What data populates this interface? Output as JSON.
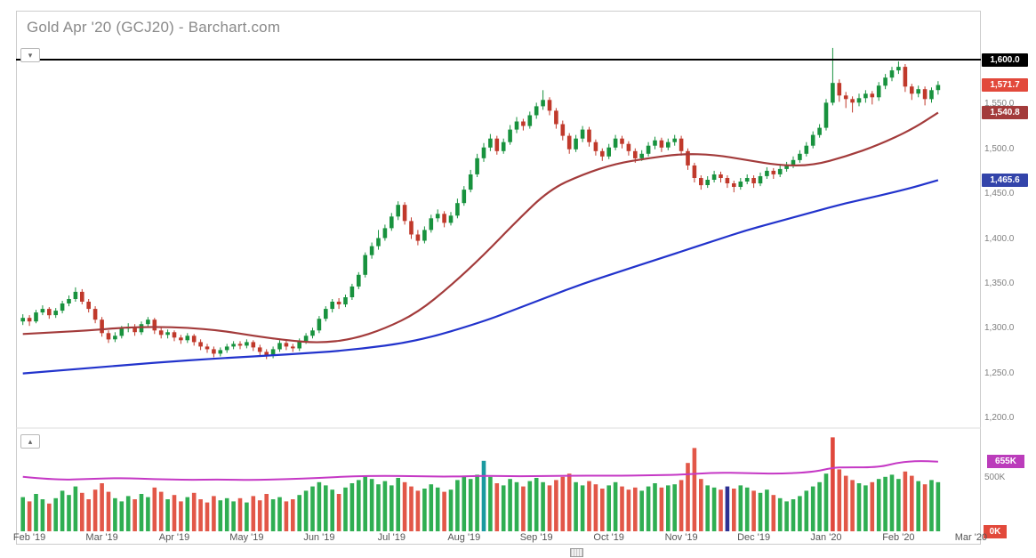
{
  "header": {
    "title": "Gold Apr '20 (GCJ20) - Barchart.com"
  },
  "icons": {
    "chevron_down": "▾",
    "chevron_up": "▴"
  },
  "chart_data": {
    "type": "candlestick+volume",
    "title": "Gold Apr '20 (GCJ20) - Barchart.com",
    "symbol": "GCJ20",
    "x_axis": {
      "labels": [
        "Feb '19",
        "Mar '19",
        "Apr '19",
        "May '19",
        "Jun '19",
        "Jul '19",
        "Aug '19",
        "Sep '19",
        "Oct '19",
        "Nov '19",
        "Dec '19",
        "Jan '20",
        "Feb '20",
        "Mar '20"
      ],
      "tick_indices": [
        1,
        12,
        23,
        34,
        45,
        56,
        67,
        78,
        89,
        100,
        111,
        122,
        133,
        144
      ],
      "total_slots": 146
    },
    "y_axis": {
      "range": [
        1200,
        1600
      ],
      "tick_labels": [
        "1,550.0",
        "1,500.0",
        "1,450.0",
        "1,400.0",
        "1,350.0",
        "1,300.0",
        "1,250.0",
        "1,200.0"
      ],
      "tick_values": [
        1550,
        1500,
        1450,
        1400,
        1350,
        1300,
        1250,
        1200
      ],
      "horizontal_line_value": 1600
    },
    "price_badges": [
      {
        "label": "1,600.0",
        "value": 1600.0,
        "color": "#000000",
        "role": "threshold-line"
      },
      {
        "label": "1,571.7",
        "value": 1571.7,
        "color": "#e2493b",
        "role": "last-price"
      },
      {
        "label": "1,540.8",
        "value": 1540.8,
        "color": "#a33b3b",
        "role": "ma-fast-value"
      },
      {
        "label": "1,465.6",
        "value": 1465.6,
        "color": "#3344aa",
        "role": "ma-slow-value"
      }
    ],
    "colors": {
      "candle_up": "#18923e",
      "candle_down": "#c0392b",
      "volume_up": "#2fae52",
      "volume_down": "#e25748",
      "avg_volume_line": "#c538c5",
      "ma_fast": "#a33b3b",
      "ma_slow": "#2233cc",
      "threshold_line": "#000000"
    },
    "candles": [
      [
        1308,
        1316,
        1304,
        1312
      ],
      [
        1312,
        1315,
        1303,
        1308
      ],
      [
        1308,
        1321,
        1306,
        1318
      ],
      [
        1318,
        1326,
        1315,
        1322
      ],
      [
        1322,
        1324,
        1311,
        1315
      ],
      [
        1315,
        1323,
        1312,
        1320
      ],
      [
        1320,
        1331,
        1317,
        1328
      ],
      [
        1328,
        1337,
        1325,
        1333
      ],
      [
        1333,
        1346,
        1330,
        1341
      ],
      [
        1341,
        1344,
        1327,
        1330
      ],
      [
        1330,
        1333,
        1318,
        1322
      ],
      [
        1322,
        1325,
        1306,
        1310
      ],
      [
        1310,
        1313,
        1291,
        1295
      ],
      [
        1295,
        1298,
        1284,
        1288
      ],
      [
        1288,
        1296,
        1285,
        1292
      ],
      [
        1292,
        1303,
        1289,
        1300
      ],
      [
        1300,
        1306,
        1296,
        1302
      ],
      [
        1302,
        1305,
        1292,
        1296
      ],
      [
        1296,
        1308,
        1293,
        1305
      ],
      [
        1305,
        1313,
        1301,
        1310
      ],
      [
        1310,
        1312,
        1294,
        1298
      ],
      [
        1298,
        1301,
        1289,
        1293
      ],
      [
        1293,
        1299,
        1289,
        1296
      ],
      [
        1296,
        1298,
        1286,
        1290
      ],
      [
        1290,
        1293,
        1283,
        1287
      ],
      [
        1287,
        1295,
        1284,
        1292
      ],
      [
        1292,
        1294,
        1281,
        1285
      ],
      [
        1285,
        1288,
        1276,
        1280
      ],
      [
        1280,
        1283,
        1273,
        1277
      ],
      [
        1277,
        1280,
        1268,
        1272
      ],
      [
        1272,
        1279,
        1269,
        1276
      ],
      [
        1276,
        1283,
        1273,
        1280
      ],
      [
        1280,
        1286,
        1277,
        1283
      ],
      [
        1283,
        1286,
        1277,
        1281
      ],
      [
        1281,
        1288,
        1278,
        1285
      ],
      [
        1285,
        1287,
        1275,
        1279
      ],
      [
        1279,
        1282,
        1270,
        1274
      ],
      [
        1274,
        1277,
        1266,
        1270
      ],
      [
        1270,
        1280,
        1267,
        1277
      ],
      [
        1277,
        1287,
        1274,
        1284
      ],
      [
        1284,
        1287,
        1276,
        1280
      ],
      [
        1280,
        1283,
        1274,
        1278
      ],
      [
        1278,
        1289,
        1275,
        1286
      ],
      [
        1286,
        1295,
        1283,
        1292
      ],
      [
        1292,
        1301,
        1289,
        1298
      ],
      [
        1298,
        1314,
        1295,
        1311
      ],
      [
        1311,
        1325,
        1308,
        1322
      ],
      [
        1322,
        1333,
        1318,
        1330
      ],
      [
        1330,
        1334,
        1322,
        1327
      ],
      [
        1327,
        1338,
        1324,
        1335
      ],
      [
        1335,
        1350,
        1332,
        1347
      ],
      [
        1347,
        1363,
        1344,
        1360
      ],
      [
        1360,
        1385,
        1357,
        1382
      ],
      [
        1382,
        1396,
        1378,
        1392
      ],
      [
        1392,
        1410,
        1388,
        1401
      ],
      [
        1401,
        1416,
        1398,
        1412
      ],
      [
        1412,
        1429,
        1409,
        1425
      ],
      [
        1425,
        1442,
        1421,
        1438
      ],
      [
        1438,
        1441,
        1416,
        1420
      ],
      [
        1420,
        1424,
        1400,
        1405
      ],
      [
        1405,
        1410,
        1393,
        1398
      ],
      [
        1398,
        1414,
        1395,
        1410
      ],
      [
        1410,
        1427,
        1407,
        1423
      ],
      [
        1423,
        1433,
        1419,
        1428
      ],
      [
        1428,
        1431,
        1413,
        1418
      ],
      [
        1418,
        1430,
        1415,
        1426
      ],
      [
        1426,
        1445,
        1423,
        1440
      ],
      [
        1440,
        1459,
        1437,
        1455
      ],
      [
        1455,
        1477,
        1452,
        1472
      ],
      [
        1472,
        1495,
        1469,
        1490
      ],
      [
        1490,
        1507,
        1486,
        1502
      ],
      [
        1502,
        1517,
        1498,
        1512
      ],
      [
        1512,
        1515,
        1494,
        1498
      ],
      [
        1498,
        1512,
        1495,
        1508
      ],
      [
        1508,
        1527,
        1505,
        1522
      ],
      [
        1522,
        1536,
        1518,
        1531
      ],
      [
        1531,
        1534,
        1521,
        1526
      ],
      [
        1526,
        1542,
        1523,
        1538
      ],
      [
        1538,
        1552,
        1534,
        1548
      ],
      [
        1548,
        1566,
        1544,
        1555
      ],
      [
        1555,
        1558,
        1538,
        1543
      ],
      [
        1543,
        1546,
        1523,
        1528
      ],
      [
        1528,
        1532,
        1510,
        1515
      ],
      [
        1515,
        1518,
        1495,
        1500
      ],
      [
        1500,
        1516,
        1497,
        1512
      ],
      [
        1512,
        1526,
        1508,
        1522
      ],
      [
        1522,
        1525,
        1503,
        1508
      ],
      [
        1508,
        1511,
        1493,
        1498
      ],
      [
        1498,
        1501,
        1487,
        1492
      ],
      [
        1492,
        1506,
        1489,
        1502
      ],
      [
        1502,
        1516,
        1499,
        1512
      ],
      [
        1512,
        1515,
        1501,
        1506
      ],
      [
        1506,
        1509,
        1493,
        1498
      ],
      [
        1498,
        1501,
        1485,
        1490
      ],
      [
        1490,
        1499,
        1487,
        1495
      ],
      [
        1495,
        1508,
        1492,
        1504
      ],
      [
        1504,
        1514,
        1500,
        1510
      ],
      [
        1510,
        1513,
        1497,
        1502
      ],
      [
        1502,
        1512,
        1499,
        1508
      ],
      [
        1508,
        1516,
        1504,
        1512
      ],
      [
        1512,
        1515,
        1493,
        1498
      ],
      [
        1498,
        1501,
        1477,
        1482
      ],
      [
        1482,
        1485,
        1463,
        1468
      ],
      [
        1468,
        1471,
        1455,
        1460
      ],
      [
        1460,
        1470,
        1457,
        1466
      ],
      [
        1466,
        1476,
        1463,
        1472
      ],
      [
        1472,
        1475,
        1463,
        1468
      ],
      [
        1468,
        1471,
        1457,
        1462
      ],
      [
        1462,
        1465,
        1452,
        1458
      ],
      [
        1458,
        1468,
        1455,
        1464
      ],
      [
        1464,
        1472,
        1461,
        1468
      ],
      [
        1468,
        1471,
        1457,
        1462
      ],
      [
        1462,
        1474,
        1459,
        1470
      ],
      [
        1470,
        1480,
        1467,
        1476
      ],
      [
        1476,
        1479,
        1467,
        1472
      ],
      [
        1472,
        1482,
        1469,
        1478
      ],
      [
        1478,
        1486,
        1475,
        1482
      ],
      [
        1482,
        1492,
        1479,
        1488
      ],
      [
        1488,
        1499,
        1485,
        1495
      ],
      [
        1495,
        1508,
        1492,
        1504
      ],
      [
        1504,
        1520,
        1501,
        1516
      ],
      [
        1516,
        1528,
        1513,
        1524
      ],
      [
        1524,
        1556,
        1521,
        1552
      ],
      [
        1552,
        1613,
        1549,
        1574
      ],
      [
        1574,
        1578,
        1553,
        1560
      ],
      [
        1560,
        1564,
        1546,
        1556
      ],
      [
        1556,
        1559,
        1541,
        1552
      ],
      [
        1552,
        1562,
        1548,
        1557
      ],
      [
        1557,
        1566,
        1552,
        1562
      ],
      [
        1562,
        1565,
        1550,
        1558
      ],
      [
        1558,
        1575,
        1554,
        1571
      ],
      [
        1571,
        1584,
        1567,
        1580
      ],
      [
        1580,
        1592,
        1576,
        1588
      ],
      [
        1588,
        1598,
        1584,
        1592
      ],
      [
        1592,
        1595,
        1564,
        1570
      ],
      [
        1570,
        1573,
        1555,
        1562
      ],
      [
        1562,
        1571,
        1558,
        1567
      ],
      [
        1567,
        1570,
        1549,
        1556
      ],
      [
        1556,
        1569,
        1552,
        1566
      ],
      [
        1566,
        1576,
        1561,
        1571.7
      ]
    ],
    "ma_fast": {
      "name": "moving-average-fast",
      "points": [
        [
          0,
          1294
        ],
        [
          5,
          1296
        ],
        [
          10,
          1298
        ],
        [
          15,
          1301
        ],
        [
          20,
          1302
        ],
        [
          25,
          1301
        ],
        [
          30,
          1298
        ],
        [
          35,
          1292
        ],
        [
          40,
          1287
        ],
        [
          45,
          1284
        ],
        [
          50,
          1288
        ],
        [
          55,
          1300
        ],
        [
          60,
          1318
        ],
        [
          65,
          1348
        ],
        [
          70,
          1382
        ],
        [
          75,
          1420
        ],
        [
          80,
          1455
        ],
        [
          85,
          1472
        ],
        [
          90,
          1484
        ],
        [
          95,
          1490
        ],
        [
          100,
          1495
        ],
        [
          105,
          1494
        ],
        [
          110,
          1488
        ],
        [
          115,
          1482
        ],
        [
          120,
          1482
        ],
        [
          125,
          1492
        ],
        [
          130,
          1505
        ],
        [
          135,
          1522
        ],
        [
          139,
          1540.8
        ]
      ]
    },
    "ma_slow": {
      "name": "moving-average-slow",
      "points": [
        [
          0,
          1250
        ],
        [
          10,
          1256
        ],
        [
          20,
          1262
        ],
        [
          30,
          1267
        ],
        [
          40,
          1271
        ],
        [
          50,
          1276
        ],
        [
          60,
          1286
        ],
        [
          70,
          1308
        ],
        [
          75,
          1322
        ],
        [
          80,
          1336
        ],
        [
          85,
          1350
        ],
        [
          90,
          1362
        ],
        [
          95,
          1374
        ],
        [
          100,
          1386
        ],
        [
          105,
          1398
        ],
        [
          110,
          1410
        ],
        [
          115,
          1420
        ],
        [
          120,
          1430
        ],
        [
          125,
          1440
        ],
        [
          130,
          1448
        ],
        [
          135,
          1457
        ],
        [
          139,
          1465.6
        ]
      ]
    },
    "volume": {
      "unit": "K",
      "values": [
        320,
        280,
        350,
        300,
        260,
        310,
        380,
        340,
        420,
        360,
        300,
        390,
        450,
        370,
        310,
        280,
        330,
        300,
        350,
        320,
        410,
        370,
        300,
        340,
        280,
        320,
        360,
        300,
        270,
        330,
        290,
        310,
        280,
        310,
        270,
        330,
        290,
        350,
        300,
        320,
        280,
        300,
        340,
        380,
        420,
        460,
        430,
        390,
        350,
        410,
        450,
        480,
        520,
        490,
        440,
        470,
        430,
        500,
        460,
        420,
        380,
        400,
        440,
        410,
        370,
        390,
        480,
        520,
        490,
        530,
        660,
        510,
        450,
        430,
        490,
        460,
        420,
        470,
        500,
        460,
        430,
        480,
        510,
        540,
        460,
        430,
        470,
        440,
        400,
        430,
        460,
        420,
        390,
        410,
        380,
        420,
        450,
        410,
        430,
        440,
        480,
        640,
        780,
        490,
        430,
        410,
        390,
        420,
        400,
        430,
        410,
        380,
        360,
        390,
        340,
        310,
        280,
        300,
        330,
        380,
        420,
        460,
        540,
        880,
        580,
        520,
        480,
        450,
        430,
        460,
        490,
        510,
        530,
        490,
        560,
        520,
        470,
        440,
        480,
        460
      ],
      "override_colors": {
        "70": "#1b9aa0",
        "107": "#2e3192",
        "123": "#e0483c"
      },
      "avg_line": {
        "points": [
          [
            0,
            510
          ],
          [
            5,
            480
          ],
          [
            10,
            490
          ],
          [
            15,
            500
          ],
          [
            20,
            488
          ],
          [
            25,
            482
          ],
          [
            30,
            485
          ],
          [
            35,
            480
          ],
          [
            40,
            488
          ],
          [
            45,
            500
          ],
          [
            50,
            515
          ],
          [
            55,
            520
          ],
          [
            60,
            515
          ],
          [
            65,
            512
          ],
          [
            70,
            520
          ],
          [
            75,
            515
          ],
          [
            80,
            518
          ],
          [
            85,
            522
          ],
          [
            90,
            520
          ],
          [
            95,
            524
          ],
          [
            100,
            530
          ],
          [
            105,
            550
          ],
          [
            110,
            545
          ],
          [
            115,
            538
          ],
          [
            120,
            555
          ],
          [
            123,
            595
          ],
          [
            125,
            600
          ],
          [
            130,
            598
          ],
          [
            133,
            645
          ],
          [
            136,
            660
          ],
          [
            139,
            652
          ]
        ]
      },
      "y_tick": {
        "label": "500K",
        "value": 500
      },
      "badges": [
        {
          "label": "655K",
          "value": 655,
          "color": "#bb3cbb"
        },
        {
          "label": "0K",
          "value": 0,
          "color": "#e2493b"
        }
      ]
    }
  }
}
